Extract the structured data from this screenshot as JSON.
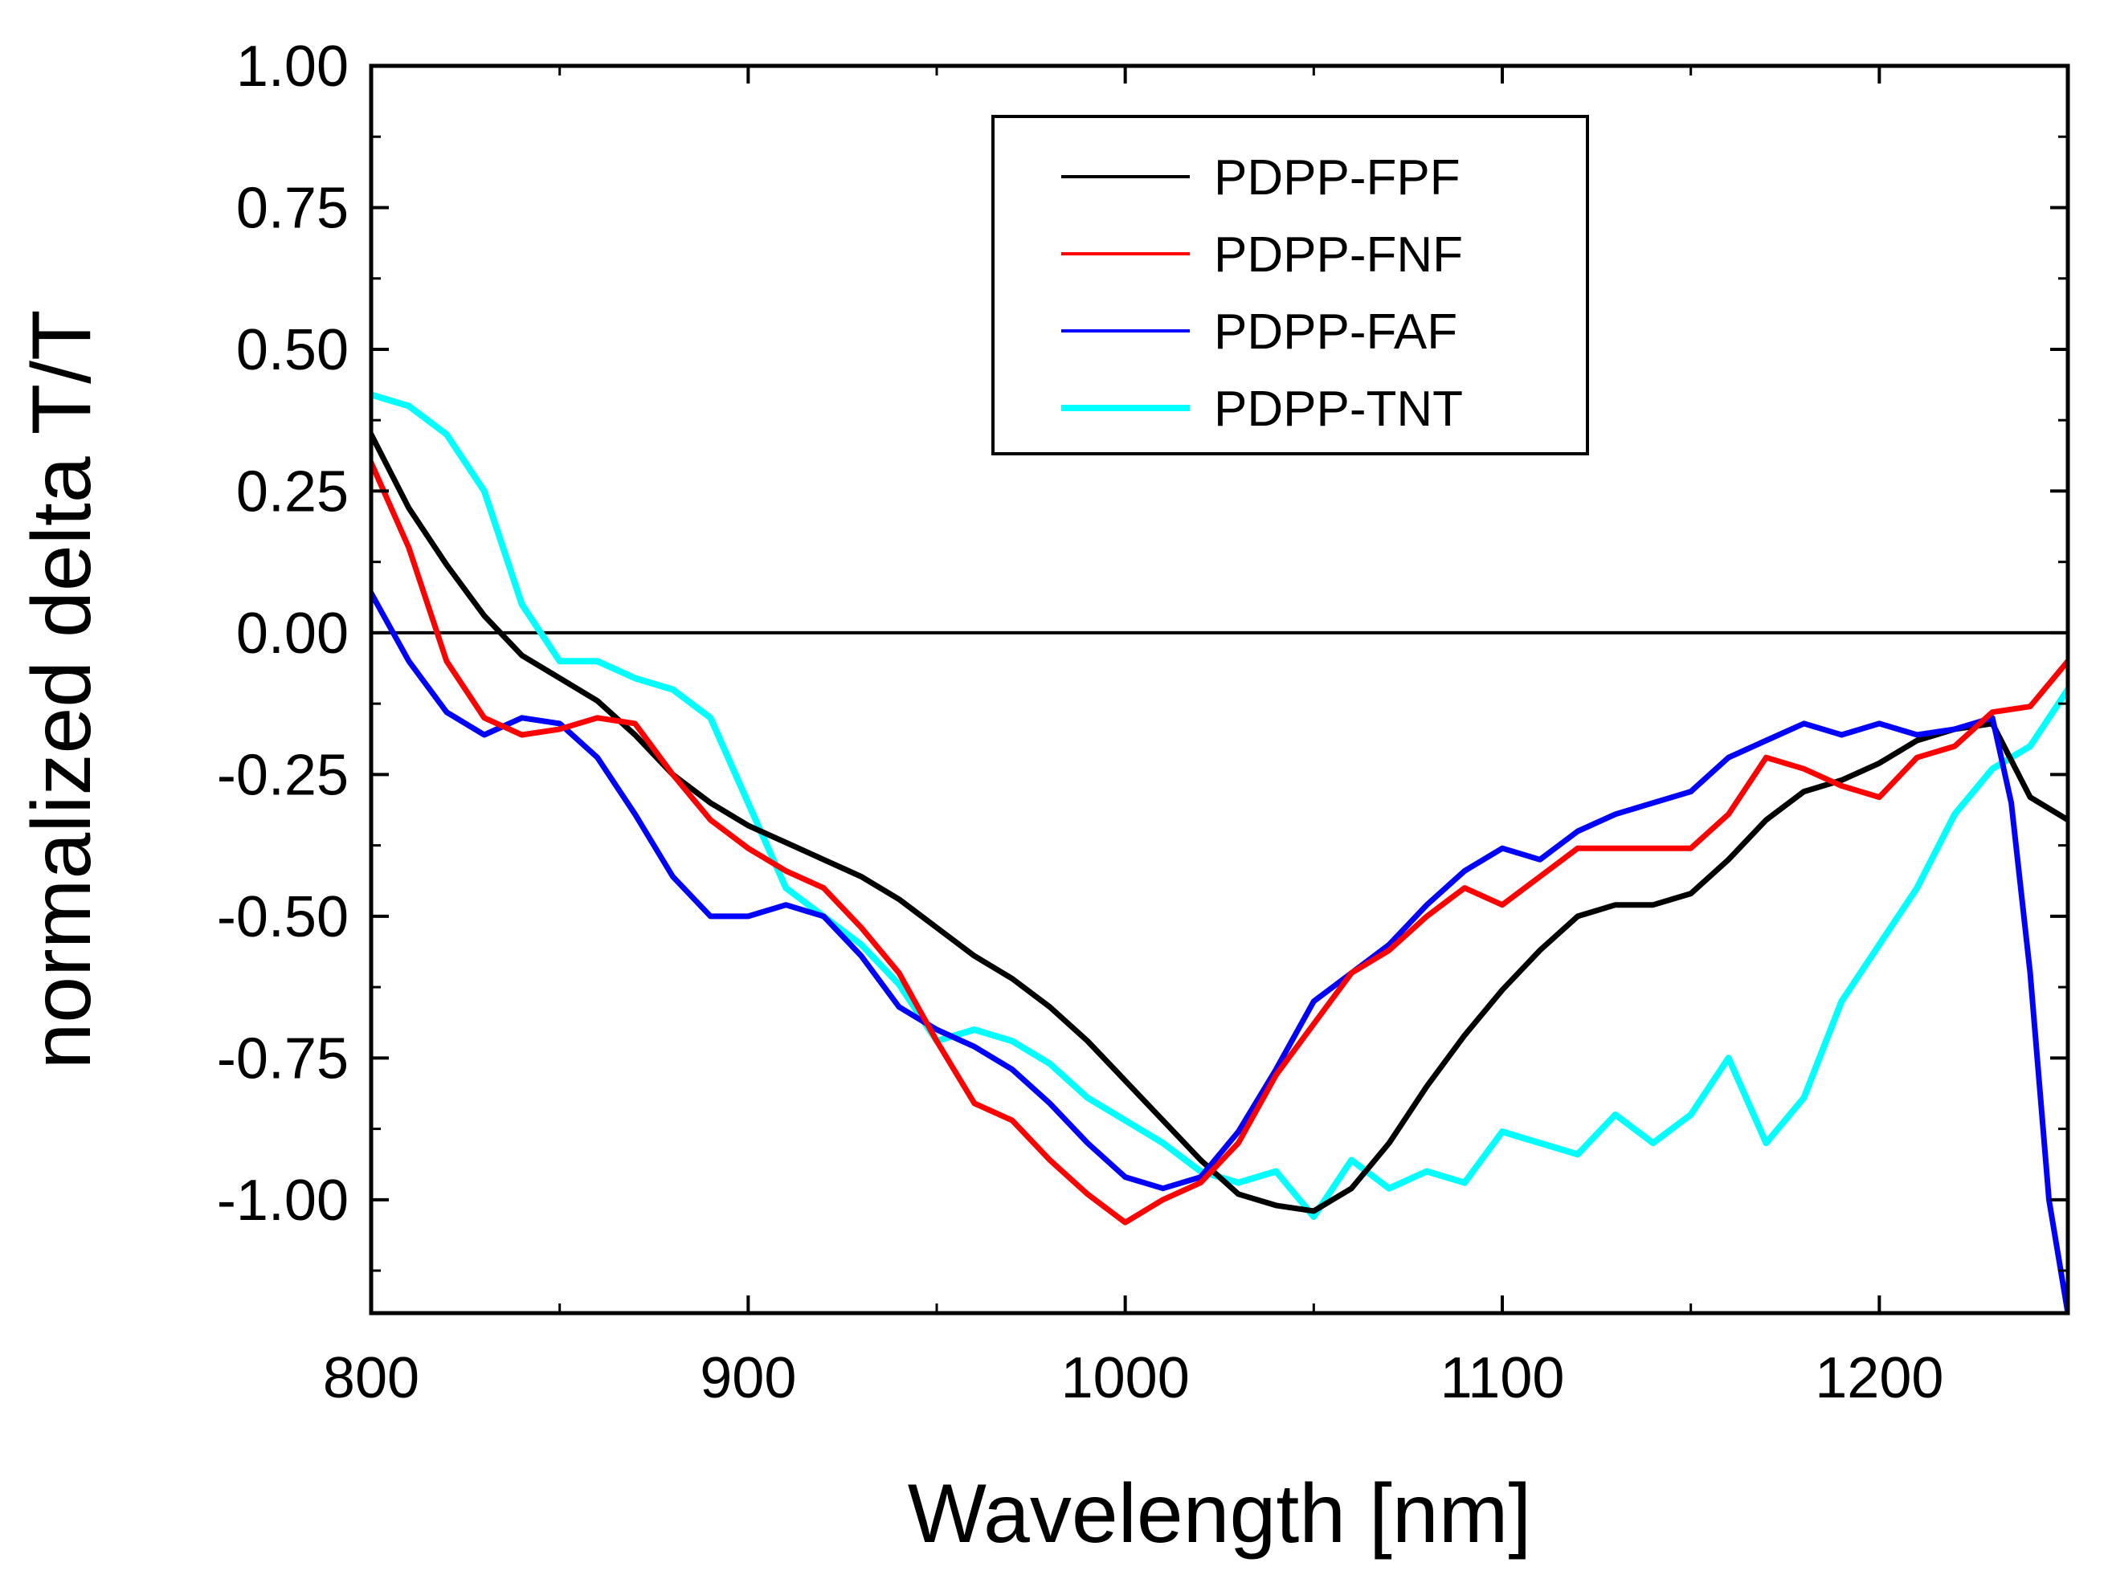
{
  "chart_data": {
    "type": "line",
    "title": "",
    "xlabel": "Wavelength [nm]",
    "ylabel": "normalized delta T/T",
    "xlim": [
      800,
      1250
    ],
    "ylim": [
      -1.2,
      1.0
    ],
    "xticks": [
      800,
      900,
      1000,
      1100,
      1200
    ],
    "xtick_labels": [
      "800",
      "900",
      "1000",
      "1100",
      "1200"
    ],
    "yticks": [
      1.0,
      0.75,
      0.5,
      0.25,
      0.0,
      -0.25,
      -0.5,
      -0.75,
      -1.0
    ],
    "ytick_labels": [
      "1.00",
      "0.75",
      "0.50",
      "0.25",
      "0.00",
      "-0.25",
      "-0.50",
      "-0.75",
      "-1.00"
    ],
    "reference_line_y": 0.0,
    "legend_position": "top-right",
    "series": [
      {
        "name": "PDPP-FPF",
        "color": "#000000",
        "x": [
          800,
          810,
          820,
          830,
          840,
          850,
          860,
          870,
          880,
          890,
          900,
          910,
          920,
          930,
          940,
          950,
          960,
          970,
          980,
          990,
          1000,
          1010,
          1020,
          1030,
          1040,
          1050,
          1060,
          1070,
          1080,
          1090,
          1100,
          1110,
          1120,
          1130,
          1140,
          1150,
          1160,
          1170,
          1180,
          1190,
          1200,
          1210,
          1220,
          1230,
          1240,
          1250
        ],
        "y": [
          0.35,
          0.22,
          0.12,
          0.03,
          -0.04,
          -0.08,
          -0.12,
          -0.18,
          -0.25,
          -0.3,
          -0.34,
          -0.37,
          -0.4,
          -0.43,
          -0.47,
          -0.52,
          -0.57,
          -0.61,
          -0.66,
          -0.72,
          -0.79,
          -0.86,
          -0.93,
          -0.99,
          -1.01,
          -1.02,
          -0.98,
          -0.9,
          -0.8,
          -0.71,
          -0.63,
          -0.56,
          -0.5,
          -0.48,
          -0.48,
          -0.46,
          -0.4,
          -0.33,
          -0.28,
          -0.26,
          -0.23,
          -0.19,
          -0.17,
          -0.16,
          -0.29,
          -0.33
        ]
      },
      {
        "name": "PDPP-FNF",
        "color": "#ff0000",
        "x": [
          800,
          810,
          820,
          830,
          840,
          850,
          860,
          870,
          880,
          890,
          900,
          910,
          920,
          930,
          940,
          950,
          960,
          970,
          980,
          990,
          1000,
          1010,
          1020,
          1030,
          1040,
          1050,
          1060,
          1070,
          1080,
          1090,
          1100,
          1110,
          1120,
          1130,
          1140,
          1150,
          1160,
          1170,
          1180,
          1190,
          1200,
          1210,
          1220,
          1230,
          1240,
          1250
        ],
        "y": [
          0.3,
          0.15,
          -0.05,
          -0.15,
          -0.18,
          -0.17,
          -0.15,
          -0.16,
          -0.25,
          -0.33,
          -0.38,
          -0.42,
          -0.45,
          -0.52,
          -0.6,
          -0.72,
          -0.83,
          -0.86,
          -0.93,
          -0.99,
          -1.04,
          -1.0,
          -0.97,
          -0.9,
          -0.78,
          -0.69,
          -0.6,
          -0.56,
          -0.5,
          -0.45,
          -0.48,
          -0.43,
          -0.38,
          -0.38,
          -0.38,
          -0.38,
          -0.32,
          -0.22,
          -0.24,
          -0.27,
          -0.29,
          -0.22,
          -0.2,
          -0.14,
          -0.13,
          -0.05
        ]
      },
      {
        "name": "PDPP-FAF",
        "color": "#0000ff",
        "x": [
          800,
          810,
          820,
          830,
          840,
          850,
          860,
          870,
          880,
          890,
          900,
          910,
          920,
          930,
          940,
          950,
          960,
          970,
          980,
          990,
          1000,
          1010,
          1020,
          1030,
          1040,
          1050,
          1060,
          1070,
          1080,
          1090,
          1100,
          1110,
          1120,
          1130,
          1140,
          1150,
          1160,
          1170,
          1180,
          1190,
          1200,
          1210,
          1220,
          1230,
          1235,
          1240,
          1245,
          1250
        ],
        "y": [
          0.07,
          -0.05,
          -0.14,
          -0.18,
          -0.15,
          -0.16,
          -0.22,
          -0.32,
          -0.43,
          -0.5,
          -0.5,
          -0.48,
          -0.5,
          -0.57,
          -0.66,
          -0.7,
          -0.73,
          -0.77,
          -0.83,
          -0.9,
          -0.96,
          -0.98,
          -0.96,
          -0.88,
          -0.77,
          -0.65,
          -0.6,
          -0.55,
          -0.48,
          -0.42,
          -0.38,
          -0.4,
          -0.35,
          -0.32,
          -0.3,
          -0.28,
          -0.22,
          -0.19,
          -0.16,
          -0.18,
          -0.16,
          -0.18,
          -0.17,
          -0.15,
          -0.3,
          -0.6,
          -1.0,
          -1.2
        ]
      },
      {
        "name": "PDPP-TNT",
        "color": "#00ffff",
        "x": [
          800,
          810,
          820,
          830,
          840,
          850,
          860,
          870,
          880,
          890,
          900,
          910,
          920,
          930,
          940,
          950,
          960,
          970,
          980,
          990,
          1000,
          1010,
          1020,
          1030,
          1040,
          1050,
          1060,
          1070,
          1080,
          1090,
          1100,
          1110,
          1120,
          1130,
          1140,
          1150,
          1160,
          1170,
          1180,
          1190,
          1200,
          1210,
          1220,
          1230,
          1240,
          1250
        ],
        "y": [
          0.42,
          0.4,
          0.35,
          0.25,
          0.05,
          -0.05,
          -0.05,
          -0.08,
          -0.1,
          -0.15,
          -0.3,
          -0.45,
          -0.5,
          -0.55,
          -0.62,
          -0.72,
          -0.7,
          -0.72,
          -0.76,
          -0.82,
          -0.86,
          -0.9,
          -0.95,
          -0.97,
          -0.95,
          -1.03,
          -0.93,
          -0.98,
          -0.95,
          -0.97,
          -0.88,
          -0.9,
          -0.92,
          -0.85,
          -0.9,
          -0.85,
          -0.75,
          -0.9,
          -0.82,
          -0.65,
          -0.55,
          -0.45,
          -0.32,
          -0.24,
          -0.2,
          -0.1
        ]
      }
    ]
  }
}
